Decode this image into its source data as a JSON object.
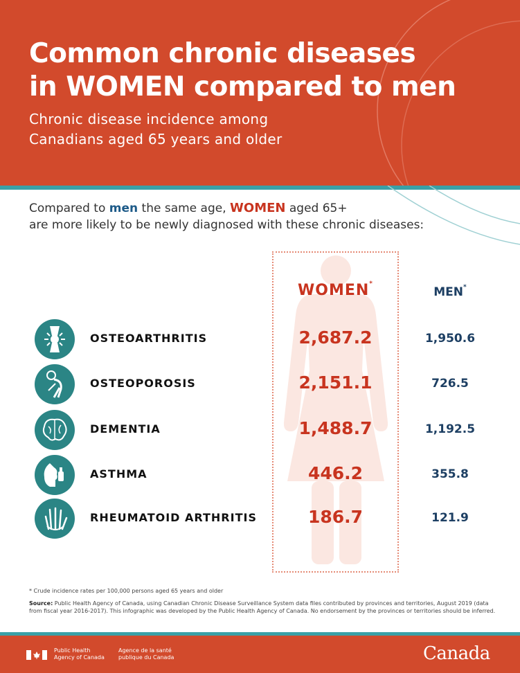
{
  "header": {
    "title_line1": "Common chronic diseases",
    "title_line2": "in WOMEN compared to men",
    "subtitle_line1": "Chronic disease incidence among",
    "subtitle_line2": "Canadians aged 65 years and older",
    "bg_color": "#d24a2c",
    "accent_color": "#3aa0a6"
  },
  "intro": {
    "part1": "Compared to ",
    "men": "men",
    "part2": " the same age, ",
    "women": "WOMEN",
    "part3": " aged 65+",
    "line2": "are more likely to be newly diagnosed with these chronic diseases:"
  },
  "columns": {
    "women": "WOMEN",
    "men": "MEN",
    "marker": "*"
  },
  "rows": [
    {
      "label": "OSTEOARTHRITIS",
      "women": "2,687.2",
      "men": "1,950.6",
      "icon": "joint-icon"
    },
    {
      "label": "OSTEOPOROSIS",
      "women": "2,151.1",
      "men": "726.5",
      "icon": "bent-posture-icon"
    },
    {
      "label": "DEMENTIA",
      "women": "1,488.7",
      "men": "1,192.5",
      "icon": "brain-icon"
    },
    {
      "label": "ASTHMA",
      "women": "446.2",
      "men": "355.8",
      "icon": "inhaler-icon"
    },
    {
      "label": "RHEUMATOID ARTHRITIS",
      "women": "186.7",
      "men": "121.9",
      "icon": "hand-icon"
    }
  ],
  "footnote": "* Crude incidence rates per 100,000 persons aged 65 years and older",
  "source": {
    "label": "Source:",
    "text": " Public Health Agency of Canada, using Canadian Chronic Disease Surveillance System data files contributed by provinces and territories, August 2019 (data from fiscal year 2016-2017). This infographic was developed by the Public Health Agency of Canada. No endorsement by the provinces or territories should be inferred."
  },
  "footer": {
    "agency_en_line1": "Public Health",
    "agency_en_line2": "Agency of Canada",
    "agency_fr_line1": "Agence de la santé",
    "agency_fr_line2": "publique du Canada",
    "wordmark": "Canada"
  }
}
